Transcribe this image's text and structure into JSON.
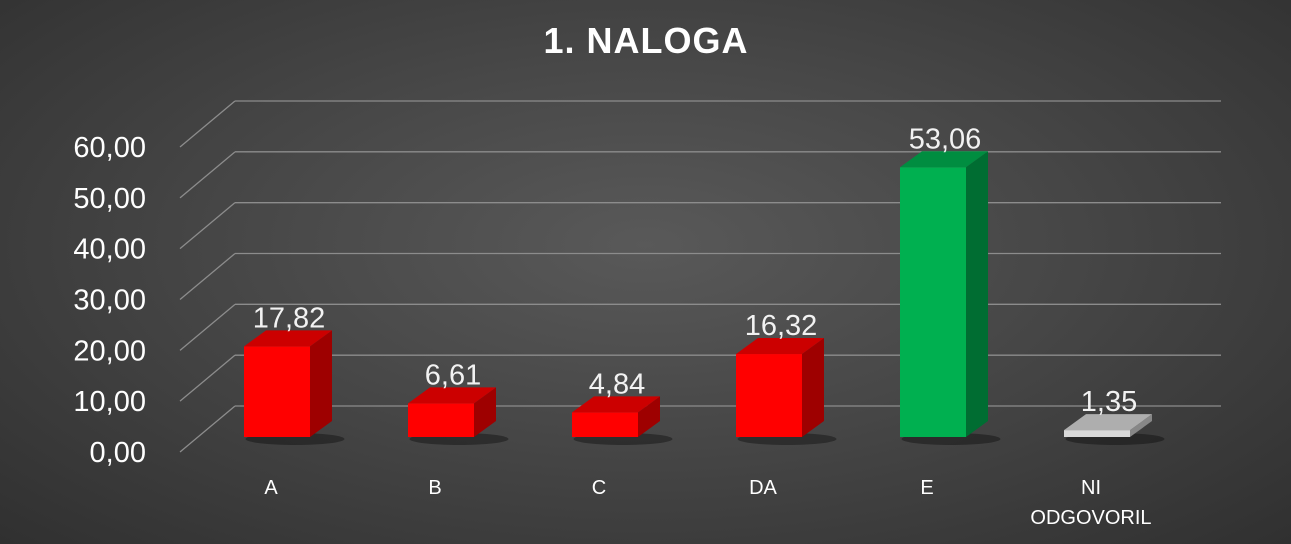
{
  "chart_data": {
    "type": "bar",
    "title": "1. NALOGA",
    "categories": [
      "A",
      "B",
      "C",
      "DA",
      "E",
      "NI ODGOVORIL"
    ],
    "category_lines": [
      [
        "A"
      ],
      [
        "B"
      ],
      [
        "C"
      ],
      [
        "DA"
      ],
      [
        "E"
      ],
      [
        "NI",
        "ODGOVORIL"
      ]
    ],
    "values": [
      17.82,
      6.61,
      4.84,
      16.32,
      53.06,
      1.35
    ],
    "value_labels": [
      "17,82",
      "6,61",
      "4,84",
      "16,32",
      "53,06",
      "1,35"
    ],
    "bar_colors": [
      "#ff0000",
      "#ff0000",
      "#ff0000",
      "#ff0000",
      "#00b050",
      "#d9d9d9"
    ],
    "yticks": [
      0,
      10,
      20,
      30,
      40,
      50,
      60
    ],
    "ytick_labels": [
      "0,00",
      "10,00",
      "20,00",
      "30,00",
      "40,00",
      "50,00",
      "60,00"
    ],
    "ylim": [
      0,
      60
    ],
    "xlabel": "",
    "ylabel": "",
    "grid": true,
    "legend": "none",
    "style": "3d-column",
    "colors": {
      "background": "#474747",
      "gridline": "#8c8c8c",
      "text": "#ffffff"
    }
  }
}
